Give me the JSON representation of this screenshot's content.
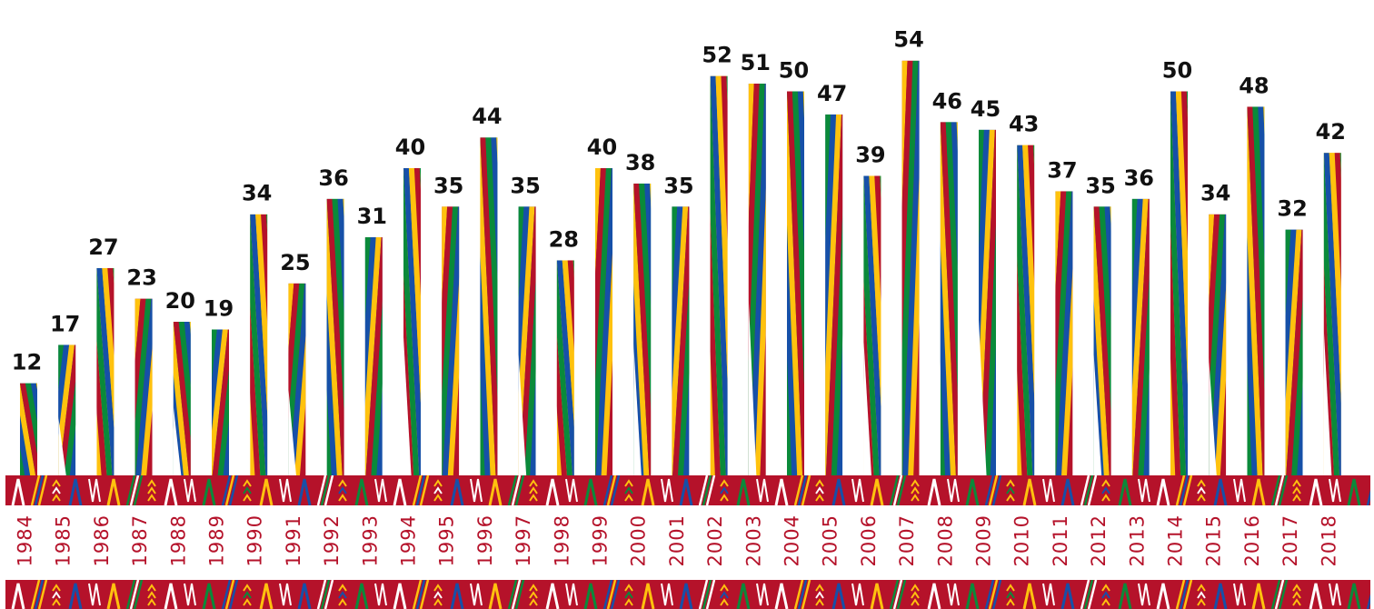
{
  "colors": {
    "red": "#b5122a",
    "green": "#0a8a3a",
    "blue": "#1650a8",
    "yellow": "#ffc20e",
    "white": "#ffffff",
    "label": "#111111",
    "year_text": "#b5122a"
  },
  "chart_data": {
    "type": "bar",
    "categories": [
      "1984",
      "1985",
      "1986",
      "1987",
      "1988",
      "1989",
      "1990",
      "1991",
      "1992",
      "1993",
      "1994",
      "1995",
      "1996",
      "1997",
      "1998",
      "1999",
      "2000",
      "2001",
      "2002",
      "2003",
      "2004",
      "2005",
      "2006",
      "2007",
      "2008",
      "2009",
      "2010",
      "2011",
      "2012",
      "2013",
      "2014",
      "2015",
      "2016",
      "2017",
      "2018"
    ],
    "series": [
      {
        "values": [
          12,
          17,
          27,
          23,
          20,
          19,
          34,
          25,
          36,
          31,
          40,
          35,
          44,
          35,
          28,
          40,
          38,
          35,
          52,
          51,
          50,
          47,
          39,
          54,
          46,
          45,
          43,
          37,
          35,
          36,
          50,
          34,
          48,
          32,
          42
        ]
      }
    ],
    "ylim": [
      0,
      54
    ],
    "grid": false,
    "legend": "none",
    "data_labels": true,
    "x_tick_orientation": "vertical",
    "decoration": "woven band pattern above and below year labels"
  }
}
